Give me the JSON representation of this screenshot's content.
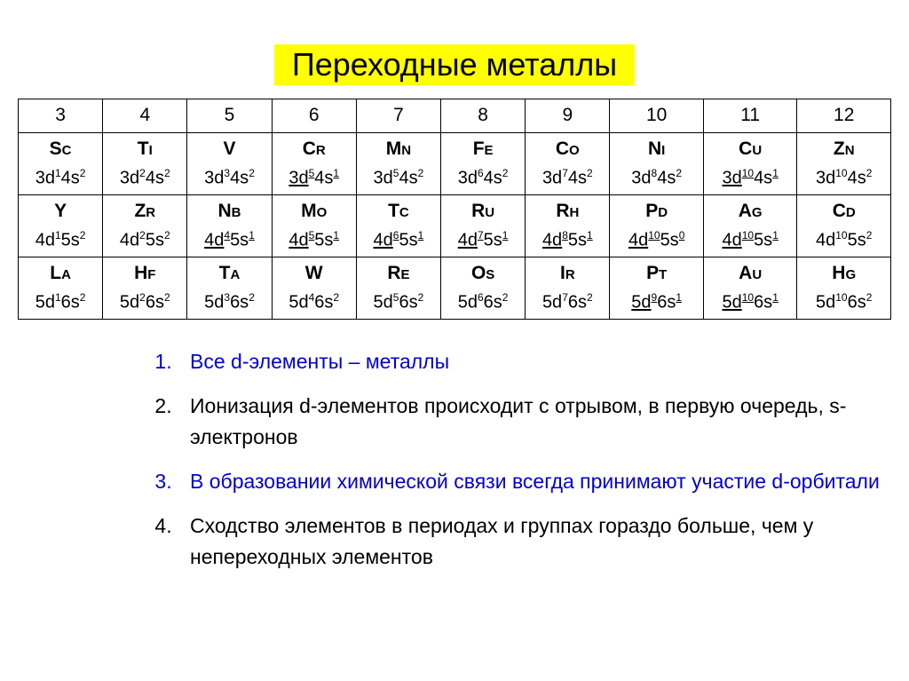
{
  "title": "Переходные металлы",
  "title_bg": "#ffff00",
  "title_color": "#000000",
  "groups": [
    "3",
    "4",
    "5",
    "6",
    "7",
    "8",
    "9",
    "10",
    "11",
    "12"
  ],
  "rows": [
    [
      {
        "sym": "Sc",
        "parts": [
          {
            "t": "3d",
            "u": false
          },
          {
            "sup": "1"
          },
          {
            "t": "4s",
            "u": false
          },
          {
            "sup": "2"
          }
        ]
      },
      {
        "sym": "Ti",
        "parts": [
          {
            "t": "3d",
            "u": false
          },
          {
            "sup": "2"
          },
          {
            "t": "4s",
            "u": false
          },
          {
            "sup": "2"
          }
        ]
      },
      {
        "sym": "V",
        "parts": [
          {
            "t": "3d",
            "u": false
          },
          {
            "sup": "3"
          },
          {
            "t": "4s",
            "u": false
          },
          {
            "sup": "2"
          }
        ]
      },
      {
        "sym": "Cr",
        "parts": [
          {
            "t": "3d",
            "u": true
          },
          {
            "sup": "5",
            "u": true
          },
          {
            "t": "4s",
            "u": false
          },
          {
            "sup": "1",
            "u": true
          }
        ]
      },
      {
        "sym": "Mn",
        "parts": [
          {
            "t": "3d",
            "u": false
          },
          {
            "sup": "5"
          },
          {
            "t": "4s",
            "u": false
          },
          {
            "sup": "2"
          }
        ]
      },
      {
        "sym": "Fe",
        "parts": [
          {
            "t": "3d",
            "u": false
          },
          {
            "sup": "6"
          },
          {
            "t": "4s",
            "u": false
          },
          {
            "sup": "2"
          }
        ]
      },
      {
        "sym": "Co",
        "parts": [
          {
            "t": "3d",
            "u": false
          },
          {
            "sup": "7"
          },
          {
            "t": "4s",
            "u": false
          },
          {
            "sup": "2"
          }
        ]
      },
      {
        "sym": "Ni",
        "parts": [
          {
            "t": "3d",
            "u": false
          },
          {
            "sup": "8"
          },
          {
            "t": "4s",
            "u": false
          },
          {
            "sup": "2"
          }
        ]
      },
      {
        "sym": "Cu",
        "parts": [
          {
            "t": "3d",
            "u": true
          },
          {
            "sup": "10",
            "u": true
          },
          {
            "t": "4s",
            "u": false
          },
          {
            "sup": "1",
            "u": true
          }
        ]
      },
      {
        "sym": "Zn",
        "parts": [
          {
            "t": "3d",
            "u": false
          },
          {
            "sup": "10"
          },
          {
            "t": "4s",
            "u": false
          },
          {
            "sup": "2"
          }
        ]
      }
    ],
    [
      {
        "sym": "Y",
        "parts": [
          {
            "t": "4d",
            "u": false
          },
          {
            "sup": "1"
          },
          {
            "t": "5s",
            "u": false
          },
          {
            "sup": "2"
          }
        ]
      },
      {
        "sym": "Zr",
        "parts": [
          {
            "t": "4d",
            "u": false
          },
          {
            "sup": "2"
          },
          {
            "t": "5s",
            "u": false
          },
          {
            "sup": "2"
          }
        ]
      },
      {
        "sym": "Nb",
        "parts": [
          {
            "t": "4d",
            "u": true
          },
          {
            "sup": "4",
            "u": true
          },
          {
            "t": "5s",
            "u": false
          },
          {
            "sup": "1",
            "u": true
          }
        ]
      },
      {
        "sym": "Mo",
        "parts": [
          {
            "t": "4d",
            "u": true
          },
          {
            "sup": "5",
            "u": true
          },
          {
            "t": "5s",
            "u": false
          },
          {
            "sup": "1",
            "u": true
          }
        ]
      },
      {
        "sym": "Tc",
        "parts": [
          {
            "t": "4d",
            "u": true
          },
          {
            "sup": "6",
            "u": true
          },
          {
            "t": "5s",
            "u": false
          },
          {
            "sup": "1",
            "u": true
          }
        ]
      },
      {
        "sym": "Ru",
        "parts": [
          {
            "t": "4d",
            "u": true
          },
          {
            "sup": "7",
            "u": true
          },
          {
            "t": "5s",
            "u": false
          },
          {
            "sup": "1",
            "u": true
          }
        ]
      },
      {
        "sym": "Rh",
        "parts": [
          {
            "t": "4d",
            "u": true
          },
          {
            "sup": "8",
            "u": true
          },
          {
            "t": "5s",
            "u": false
          },
          {
            "sup": "1",
            "u": true
          }
        ]
      },
      {
        "sym": "Pd",
        "parts": [
          {
            "t": "4d",
            "u": true
          },
          {
            "sup": "10",
            "u": true
          },
          {
            "t": "5s",
            "u": false
          },
          {
            "sup": "0",
            "u": true
          }
        ]
      },
      {
        "sym": "Ag",
        "parts": [
          {
            "t": "4d",
            "u": true
          },
          {
            "sup": "10",
            "u": true
          },
          {
            "t": "5s",
            "u": false
          },
          {
            "sup": "1",
            "u": true
          }
        ]
      },
      {
        "sym": "Cd",
        "parts": [
          {
            "t": "4d",
            "u": false
          },
          {
            "sup": "10"
          },
          {
            "t": "5s",
            "u": false
          },
          {
            "sup": "2"
          }
        ]
      }
    ],
    [
      {
        "sym": "La",
        "parts": [
          {
            "t": "5d",
            "u": false
          },
          {
            "sup": "1"
          },
          {
            "t": "6s",
            "u": false
          },
          {
            "sup": "2"
          }
        ]
      },
      {
        "sym": "Hf",
        "parts": [
          {
            "t": "5d",
            "u": false
          },
          {
            "sup": "2"
          },
          {
            "t": "6s",
            "u": false
          },
          {
            "sup": "2"
          }
        ]
      },
      {
        "sym": "Ta",
        "parts": [
          {
            "t": "5d",
            "u": false
          },
          {
            "sup": "3"
          },
          {
            "t": "6s",
            "u": false
          },
          {
            "sup": "2"
          }
        ]
      },
      {
        "sym": "W",
        "parts": [
          {
            "t": "5d",
            "u": false
          },
          {
            "sup": "4"
          },
          {
            "t": "6s",
            "u": false
          },
          {
            "sup": "2"
          }
        ]
      },
      {
        "sym": "Re",
        "parts": [
          {
            "t": "5d",
            "u": false
          },
          {
            "sup": "5"
          },
          {
            "t": "6s",
            "u": false
          },
          {
            "sup": "2"
          }
        ]
      },
      {
        "sym": "Os",
        "parts": [
          {
            "t": "5d",
            "u": false
          },
          {
            "sup": "6"
          },
          {
            "t": "6s",
            "u": false
          },
          {
            "sup": "2"
          }
        ]
      },
      {
        "sym": "Ir",
        "parts": [
          {
            "t": "5d",
            "u": false
          },
          {
            "sup": "7"
          },
          {
            "t": "6s",
            "u": false
          },
          {
            "sup": "2"
          }
        ]
      },
      {
        "sym": "Pt",
        "parts": [
          {
            "t": "5d",
            "u": true
          },
          {
            "sup": "9",
            "u": true
          },
          {
            "t": "6s",
            "u": false
          },
          {
            "sup": "1",
            "u": true
          }
        ]
      },
      {
        "sym": "Au",
        "parts": [
          {
            "t": "5d",
            "u": true
          },
          {
            "sup": "10",
            "u": true
          },
          {
            "t": "6s",
            "u": false
          },
          {
            "sup": "1",
            "u": true
          }
        ]
      },
      {
        "sym": "Hg",
        "parts": [
          {
            "t": "5d",
            "u": false
          },
          {
            "sup": "10"
          },
          {
            "t": "6s",
            "u": false
          },
          {
            "sup": "2"
          }
        ]
      }
    ]
  ],
  "list": [
    {
      "color": "blue",
      "text": "Все d-элементы – металлы"
    },
    {
      "color": "black",
      "text": "Ионизация d-элементов происходит с отрывом, в первую очередь, s-электронов"
    },
    {
      "color": "blue",
      "text": "В образовании химической связи всегда принимают участие d-орбитали"
    },
    {
      "color": "black",
      "text": "Сходство элементов в периодах и группах гораздо больше, чем у непереходных элементов"
    }
  ]
}
